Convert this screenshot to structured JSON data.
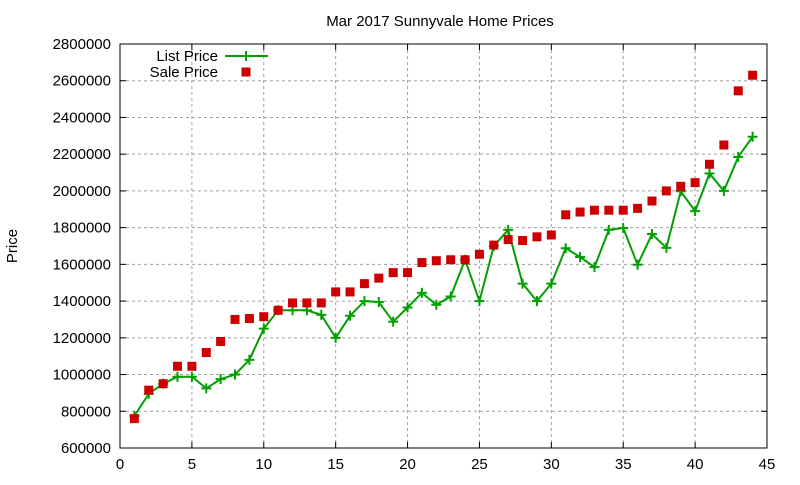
{
  "chart_data": {
    "type": "line",
    "title": "Mar 2017 Sunnyvale Home Prices",
    "xlabel": "",
    "ylabel": "Price",
    "xlim": [
      0,
      45
    ],
    "ylim": [
      600000,
      2800000
    ],
    "xticks": [
      0,
      5,
      10,
      15,
      20,
      25,
      30,
      35,
      40,
      45
    ],
    "yticks": [
      600000,
      800000,
      1000000,
      1200000,
      1400000,
      1600000,
      1800000,
      2000000,
      2200000,
      2400000,
      2600000,
      2800000
    ],
    "grid": true,
    "legend_position": "top-left",
    "x": [
      1,
      2,
      3,
      4,
      5,
      6,
      7,
      8,
      9,
      10,
      11,
      12,
      13,
      14,
      15,
      16,
      17,
      18,
      19,
      20,
      21,
      22,
      23,
      24,
      25,
      26,
      27,
      28,
      29,
      30,
      31,
      32,
      33,
      34,
      35,
      36,
      37,
      38,
      39,
      40,
      41,
      42,
      43,
      44
    ],
    "series": [
      {
        "name": "List Price",
        "style": "linespoints",
        "marker": "plus",
        "color": "#00a000",
        "values": [
          775000,
          895000,
          950000,
          988000,
          988000,
          925000,
          975000,
          1000000,
          1080000,
          1250000,
          1350000,
          1350000,
          1350000,
          1325000,
          1200000,
          1320000,
          1400000,
          1395000,
          1288000,
          1365000,
          1445000,
          1380000,
          1425000,
          1625000,
          1400000,
          1700000,
          1788000,
          1495000,
          1400000,
          1495000,
          1688000,
          1640000,
          1585000,
          1788000,
          1798000,
          1598000,
          1765000,
          1690000,
          1998000,
          1890000,
          2095000,
          2000000,
          2185000,
          2295000
        ]
      },
      {
        "name": "Sale Price",
        "style": "points",
        "marker": "square",
        "color": "#cc0000",
        "values": [
          760000,
          915000,
          950000,
          1045000,
          1045000,
          1120000,
          1180000,
          1300000,
          1305000,
          1315000,
          1350000,
          1390000,
          1390000,
          1390000,
          1450000,
          1450000,
          1495000,
          1525000,
          1555000,
          1555000,
          1610000,
          1620000,
          1625000,
          1625000,
          1655000,
          1705000,
          1735000,
          1730000,
          1750000,
          1760000,
          1870000,
          1885000,
          1895000,
          1895000,
          1895000,
          1905000,
          1945000,
          2000000,
          2025000,
          2045000,
          2145000,
          2250000,
          2545000,
          2630000
        ]
      }
    ]
  }
}
